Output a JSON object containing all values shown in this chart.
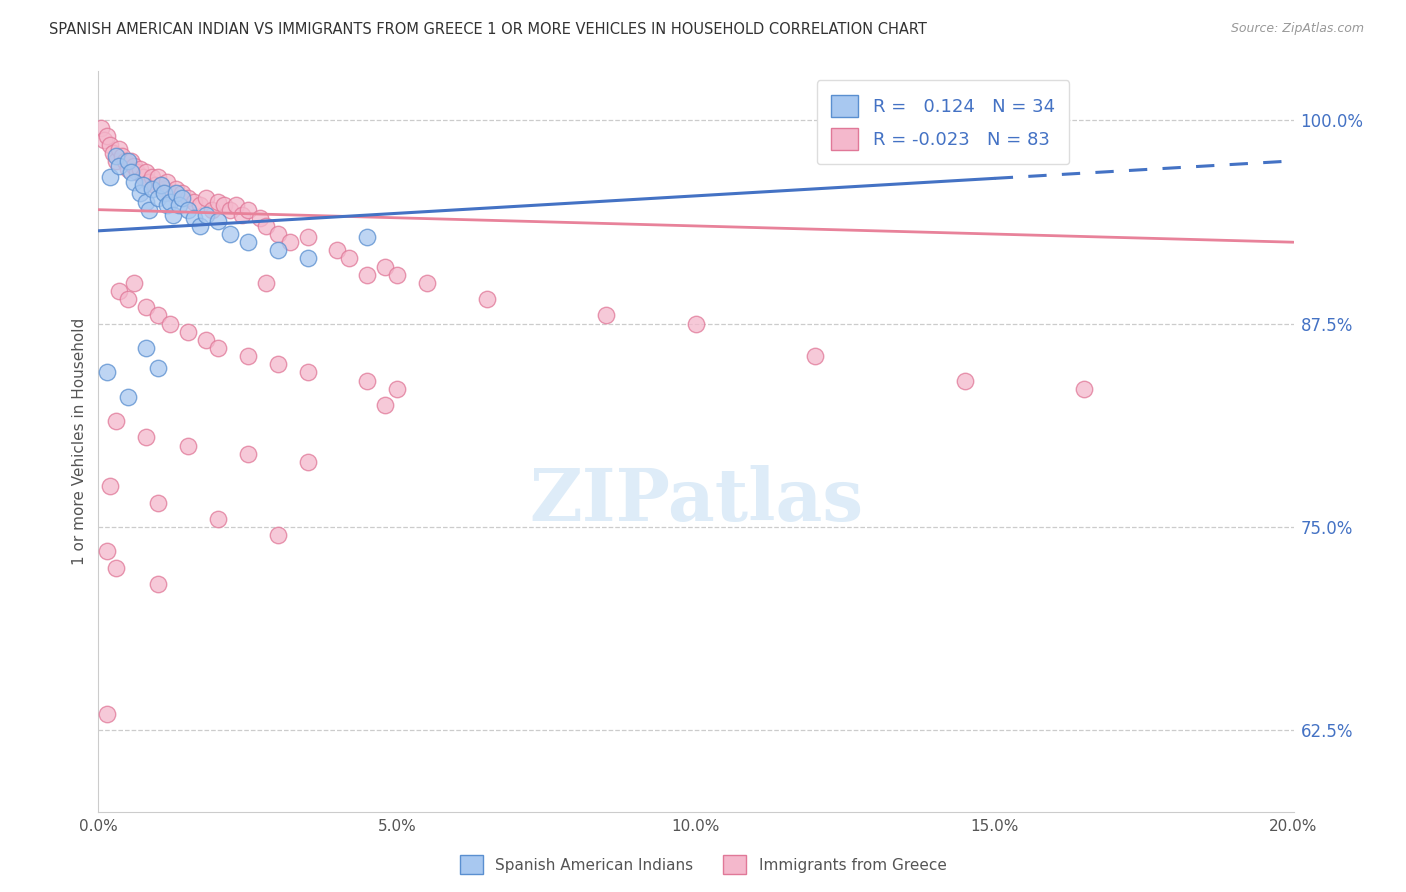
{
  "title": "SPANISH AMERICAN INDIAN VS IMMIGRANTS FROM GREECE 1 OR MORE VEHICLES IN HOUSEHOLD CORRELATION CHART",
  "source": "Source: ZipAtlas.com",
  "ylabel": "1 or more Vehicles in Household",
  "ytick_labels": [
    "62.5%",
    "75.0%",
    "87.5%",
    "100.0%"
  ],
  "ytick_values": [
    62.5,
    75.0,
    87.5,
    100.0
  ],
  "blue_color": "#A8C8F0",
  "pink_color": "#F4B8CC",
  "blue_edge_color": "#5A8FD0",
  "pink_edge_color": "#E07898",
  "blue_line_color": "#4472C4",
  "pink_line_color": "#E8829A",
  "blue_scatter": [
    [
      0.2,
      96.5
    ],
    [
      0.3,
      97.8
    ],
    [
      0.35,
      97.2
    ],
    [
      0.5,
      97.5
    ],
    [
      0.55,
      96.8
    ],
    [
      0.6,
      96.2
    ],
    [
      0.7,
      95.5
    ],
    [
      0.75,
      96.0
    ],
    [
      0.8,
      95.0
    ],
    [
      0.85,
      94.5
    ],
    [
      0.9,
      95.8
    ],
    [
      1.0,
      95.2
    ],
    [
      1.05,
      96.0
    ],
    [
      1.1,
      95.5
    ],
    [
      1.15,
      94.8
    ],
    [
      1.2,
      95.0
    ],
    [
      1.25,
      94.2
    ],
    [
      1.3,
      95.5
    ],
    [
      1.35,
      94.8
    ],
    [
      1.4,
      95.2
    ],
    [
      1.5,
      94.5
    ],
    [
      1.6,
      94.0
    ],
    [
      1.7,
      93.5
    ],
    [
      1.8,
      94.2
    ],
    [
      2.0,
      93.8
    ],
    [
      2.2,
      93.0
    ],
    [
      2.5,
      92.5
    ],
    [
      3.0,
      92.0
    ],
    [
      3.5,
      91.5
    ],
    [
      4.5,
      92.8
    ],
    [
      0.15,
      84.5
    ],
    [
      0.5,
      83.0
    ],
    [
      0.8,
      86.0
    ],
    [
      1.0,
      84.8
    ]
  ],
  "pink_scatter": [
    [
      0.05,
      99.5
    ],
    [
      0.1,
      98.8
    ],
    [
      0.15,
      99.0
    ],
    [
      0.2,
      98.5
    ],
    [
      0.25,
      98.0
    ],
    [
      0.3,
      97.5
    ],
    [
      0.35,
      98.2
    ],
    [
      0.4,
      97.8
    ],
    [
      0.45,
      97.5
    ],
    [
      0.5,
      97.0
    ],
    [
      0.55,
      97.5
    ],
    [
      0.6,
      97.2
    ],
    [
      0.65,
      96.8
    ],
    [
      0.7,
      97.0
    ],
    [
      0.75,
      96.5
    ],
    [
      0.8,
      96.8
    ],
    [
      0.85,
      96.2
    ],
    [
      0.9,
      96.5
    ],
    [
      0.95,
      96.0
    ],
    [
      1.0,
      96.5
    ],
    [
      1.05,
      96.0
    ],
    [
      1.1,
      95.8
    ],
    [
      1.15,
      96.2
    ],
    [
      1.2,
      95.5
    ],
    [
      1.3,
      95.8
    ],
    [
      1.4,
      95.5
    ],
    [
      1.5,
      95.2
    ],
    [
      1.6,
      95.0
    ],
    [
      1.7,
      94.8
    ],
    [
      1.8,
      95.2
    ],
    [
      1.9,
      94.5
    ],
    [
      2.0,
      95.0
    ],
    [
      2.1,
      94.8
    ],
    [
      2.2,
      94.5
    ],
    [
      2.3,
      94.8
    ],
    [
      2.4,
      94.2
    ],
    [
      2.5,
      94.5
    ],
    [
      2.7,
      94.0
    ],
    [
      2.8,
      93.5
    ],
    [
      3.0,
      93.0
    ],
    [
      3.2,
      92.5
    ],
    [
      3.5,
      92.8
    ],
    [
      4.0,
      92.0
    ],
    [
      4.2,
      91.5
    ],
    [
      4.5,
      90.5
    ],
    [
      4.8,
      91.0
    ],
    [
      5.0,
      90.5
    ],
    [
      5.5,
      90.0
    ],
    [
      0.35,
      89.5
    ],
    [
      0.5,
      89.0
    ],
    [
      0.6,
      90.0
    ],
    [
      0.8,
      88.5
    ],
    [
      1.0,
      88.0
    ],
    [
      1.2,
      87.5
    ],
    [
      1.5,
      87.0
    ],
    [
      1.8,
      86.5
    ],
    [
      2.0,
      86.0
    ],
    [
      2.5,
      85.5
    ],
    [
      3.0,
      85.0
    ],
    [
      3.5,
      84.5
    ],
    [
      4.5,
      84.0
    ],
    [
      5.0,
      83.5
    ],
    [
      0.3,
      81.5
    ],
    [
      0.8,
      80.5
    ],
    [
      1.5,
      80.0
    ],
    [
      2.5,
      79.5
    ],
    [
      3.5,
      79.0
    ],
    [
      0.2,
      77.5
    ],
    [
      1.0,
      76.5
    ],
    [
      2.0,
      75.5
    ],
    [
      0.15,
      73.5
    ],
    [
      0.3,
      72.5
    ],
    [
      1.0,
      71.5
    ],
    [
      0.15,
      63.5
    ],
    [
      3.0,
      74.5
    ],
    [
      6.5,
      89.0
    ],
    [
      8.5,
      88.0
    ],
    [
      10.0,
      87.5
    ],
    [
      12.0,
      85.5
    ],
    [
      14.5,
      84.0
    ],
    [
      16.5,
      83.5
    ],
    [
      4.8,
      82.5
    ],
    [
      2.8,
      90.0
    ]
  ],
  "xmin": 0.0,
  "xmax": 20.0,
  "ymin": 57.5,
  "ymax": 103.0,
  "blue_trend_x": [
    0.0,
    20.0
  ],
  "blue_trend_y": [
    93.2,
    97.5
  ],
  "pink_trend_x": [
    0.0,
    20.0
  ],
  "pink_trend_y": [
    94.5,
    92.5
  ],
  "xticks": [
    0.0,
    5.0,
    10.0,
    15.0,
    20.0
  ],
  "xtick_labels": [
    "0.0%",
    "5.0%",
    "10.0%",
    "15.0%",
    "20.0%"
  ]
}
